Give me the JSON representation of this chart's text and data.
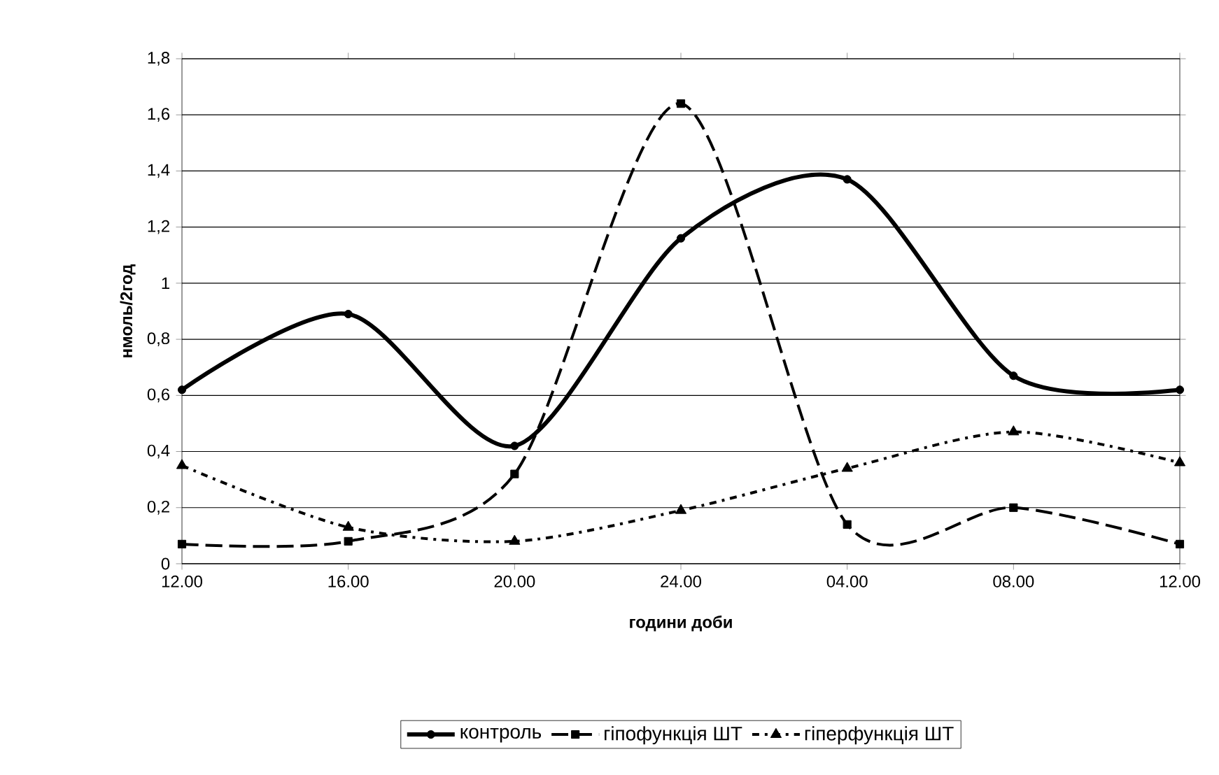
{
  "chart_data": {
    "type": "line",
    "xlabel": "години доби",
    "ylabel": "нмоль/2год",
    "categories": [
      "12.00",
      "16.00",
      "20.00",
      "24.00",
      "04.00",
      "08.00",
      "12.00"
    ],
    "series": [
      {
        "name": "контроль",
        "color": "#000000",
        "marker": "circle",
        "line_style": "solid",
        "values": [
          0.62,
          0.89,
          0.42,
          1.16,
          1.37,
          0.67,
          0.62
        ]
      },
      {
        "name": "гіпофункція ШТ",
        "color": "#000000",
        "marker": "square",
        "line_style": "dashed",
        "values": [
          0.07,
          0.08,
          0.32,
          1.64,
          0.14,
          0.2,
          0.07
        ]
      },
      {
        "name": "гіперфункція ШТ",
        "color": "#000000",
        "marker": "triangle",
        "line_style": "dotted",
        "values": [
          0.35,
          0.13,
          0.08,
          0.19,
          0.34,
          0.47,
          0.36
        ]
      }
    ],
    "ylim": [
      0,
      1.8
    ],
    "yticks": [
      0,
      {
        "value": 0.2,
        "label": "0,2"
      },
      {
        "value": 0.4,
        "label": "0,4"
      },
      {
        "value": 0.6,
        "label": "0,6"
      },
      {
        "value": 0.8,
        "label": "0,8"
      },
      1,
      {
        "value": 1.2,
        "label": "1,2"
      },
      {
        "value": 1.4,
        "label": "1,4"
      },
      {
        "value": 1.6,
        "label": "1,6"
      },
      {
        "value": 1.8,
        "label": "1,8"
      }
    ],
    "grid": "y",
    "legend": "bottom"
  }
}
